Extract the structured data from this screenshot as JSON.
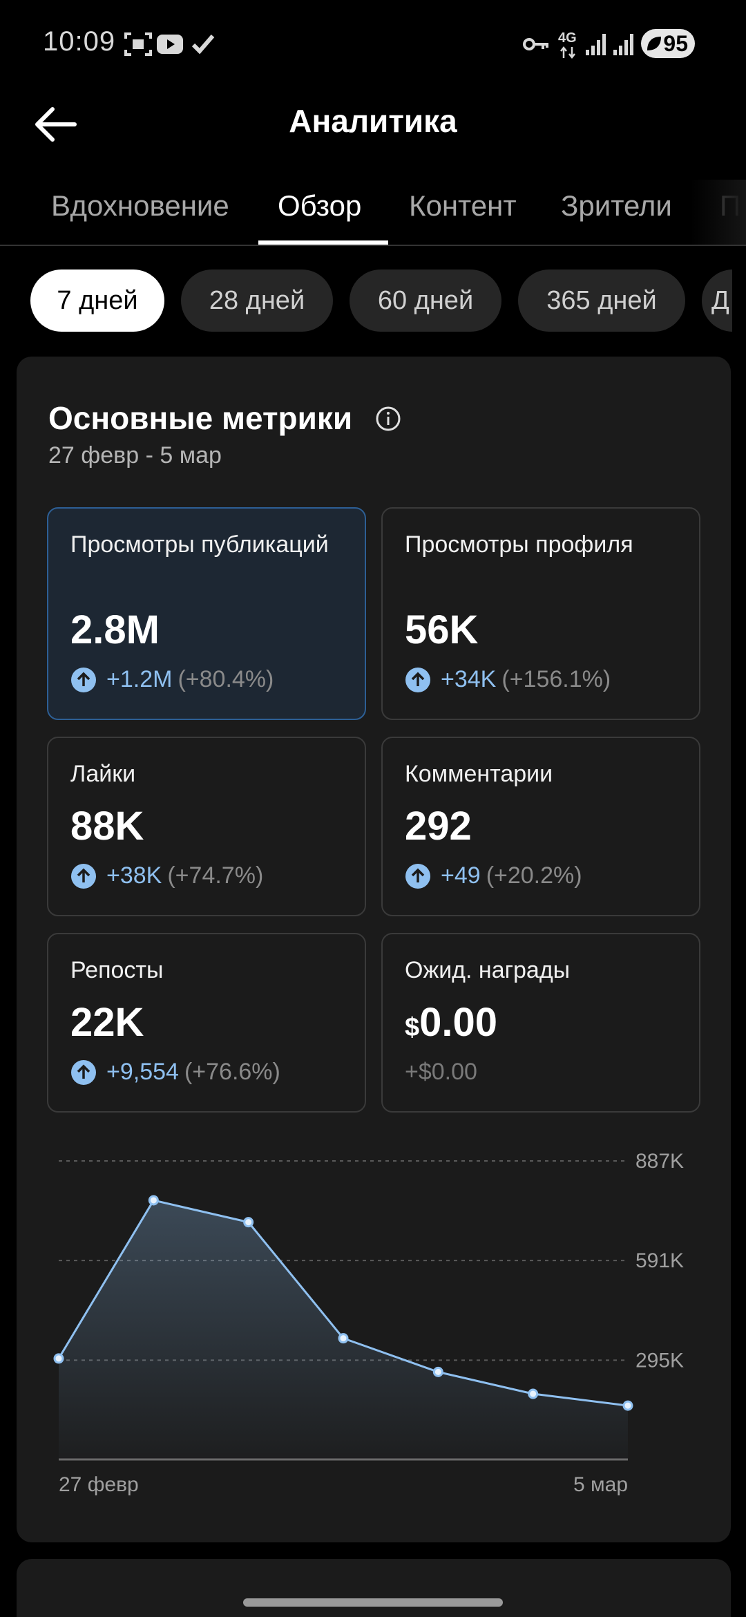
{
  "status": {
    "time": "10:09",
    "network": "4G",
    "battery": "95",
    "icons": [
      "screenshot-icon",
      "youtube-icon",
      "check-icon",
      "vpn-key-icon",
      "signal-icon",
      "signal-icon",
      "battery-icon"
    ]
  },
  "header": {
    "back_icon": "arrow-left-icon",
    "title": "Аналитика"
  },
  "tabs": [
    {
      "label": "Вдохновение",
      "active": false
    },
    {
      "label": "Обзор",
      "active": true
    },
    {
      "label": "Контент",
      "active": false
    },
    {
      "label": "Зрители",
      "active": false
    },
    {
      "label": "П",
      "active": false
    }
  ],
  "chips": [
    {
      "label": "7 дней",
      "active": true
    },
    {
      "label": "28 дней",
      "active": false
    },
    {
      "label": "60 дней",
      "active": false
    },
    {
      "label": "365 дней",
      "active": false
    },
    {
      "label": "Д",
      "active": false
    }
  ],
  "metrics_card": {
    "title": "Основные метрики",
    "info_icon": "info-icon",
    "date_range": "27 февр - 5 мар",
    "metrics": [
      {
        "label": "Просмотры публикаций",
        "value": "2.8M",
        "delta": "+1.2M",
        "percent": "(+80.4%)",
        "trend": "up",
        "selected": true
      },
      {
        "label": "Просмотры профиля",
        "value": "56K",
        "delta": "+34K",
        "percent": "(+156.1%)",
        "trend": "up",
        "selected": false
      },
      {
        "label": "Лайки",
        "value": "88K",
        "delta": "+38K",
        "percent": "(+74.7%)",
        "trend": "up",
        "selected": false
      },
      {
        "label": "Комментарии",
        "value": "292",
        "delta": "+49",
        "percent": "(+20.2%)",
        "trend": "up",
        "selected": false
      },
      {
        "label": "Репосты",
        "value": "22K",
        "delta": "+9,554",
        "percent": "(+76.6%)",
        "trend": "up",
        "selected": false
      },
      {
        "label": "Ожид. награды",
        "currency": "$",
        "value": "0.00",
        "delta": "+$0.00",
        "percent": "",
        "trend": "none",
        "selected": false
      }
    ]
  },
  "chart_data": {
    "type": "area",
    "x_start_label": "27 февр",
    "x_end_label": "5 мар",
    "y_ticks": [
      {
        "value": 295000,
        "label": "295K"
      },
      {
        "value": 591000,
        "label": "591K"
      },
      {
        "value": 887000,
        "label": "887K"
      }
    ],
    "ylim": [
      0,
      887000
    ],
    "values": [
      300000,
      770000,
      705000,
      360000,
      260000,
      195000,
      160000
    ],
    "line_color": "#8fc0f0",
    "grid": "dashed"
  }
}
